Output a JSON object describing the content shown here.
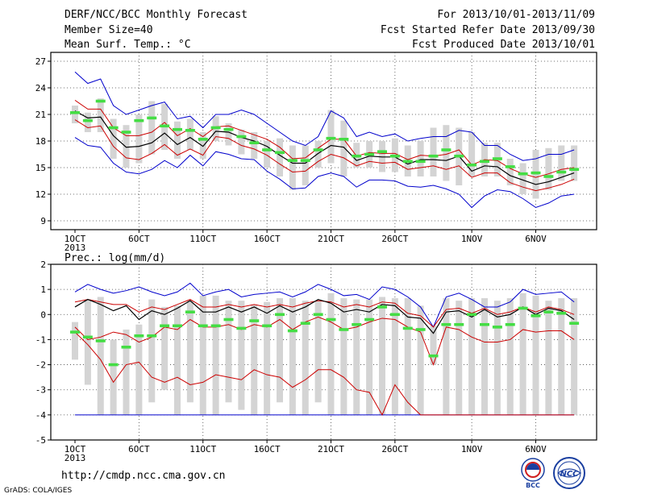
{
  "header": {
    "title": "DERF/NCC/BCC Monthly Forecast",
    "member_size": "Member Size=40",
    "variable": "Mean Surf. Temp.: °C",
    "period": "For 2013/10/01-2013/11/09",
    "started": "Fcst Started Refer Date 2013/09/30",
    "produced": "Fcst Produced Date 2013/10/01"
  },
  "footer": {
    "url": "http://cmdp.ncc.cma.gov.cn",
    "credit": "GrADS: COLA/IGES",
    "logo_left": "BCC",
    "logo_right": "NCC"
  },
  "colors": {
    "ensemble_bar": "#d4d4d4",
    "ensemble_mean": "#000000",
    "spread_inner": "#cc0000",
    "spread_outer": "#0000cc",
    "member_marker": "#44dd44"
  },
  "chart_data": [
    {
      "type": "line",
      "title": "Mean Surf. Temp.: °C",
      "x_tick_labels": [
        "1OCT",
        "6OCT",
        "11OCT",
        "16OCT",
        "21OCT",
        "26OCT",
        "1NOV",
        "6NOV"
      ],
      "x_tick_days": [
        1,
        6,
        11,
        16,
        21,
        26,
        32,
        37
      ],
      "x_sublabel": "2013",
      "ylim": [
        8,
        28
      ],
      "y_ticks": [
        9,
        12,
        15,
        18,
        21,
        24,
        27
      ],
      "grid": true,
      "x": [
        1,
        2,
        3,
        4,
        5,
        6,
        7,
        8,
        9,
        10,
        11,
        12,
        13,
        14,
        15,
        16,
        17,
        18,
        19,
        20,
        21,
        22,
        23,
        24,
        25,
        26,
        27,
        28,
        29,
        30,
        31,
        32,
        33,
        34,
        35,
        36,
        37,
        38,
        39,
        40
      ],
      "series": [
        {
          "role": "ensemble_mean",
          "values": [
            21.4,
            20.6,
            20.7,
            18.6,
            17.3,
            17.4,
            17.8,
            18.9,
            17.6,
            18.4,
            17.4,
            19.1,
            19.0,
            18.4,
            18.0,
            17.4,
            16.4,
            15.5,
            15.5,
            16.6,
            17.5,
            17.3,
            15.8,
            16.3,
            16.2,
            16.2,
            15.4,
            15.9,
            15.9,
            15.8,
            16.3,
            14.6,
            15.2,
            15.1,
            14.1,
            13.6,
            13.1,
            13.4,
            13.9,
            14.4
          ]
        },
        {
          "role": "upper_inner",
          "values": [
            22.6,
            21.6,
            21.6,
            19.5,
            18.6,
            18.6,
            19.0,
            20.1,
            18.6,
            19.4,
            18.5,
            19.6,
            19.7,
            19.2,
            18.7,
            18.2,
            17.3,
            16.0,
            16.1,
            17.2,
            18.2,
            18.2,
            16.3,
            16.7,
            16.6,
            16.6,
            15.9,
            16.4,
            16.3,
            16.5,
            17.0,
            15.3,
            15.9,
            15.8,
            14.9,
            14.3,
            13.9,
            14.3,
            14.8,
            15.0
          ]
        },
        {
          "role": "lower_inner",
          "values": [
            20.4,
            19.5,
            19.7,
            17.4,
            16.1,
            15.9,
            16.6,
            17.6,
            16.4,
            17.1,
            16.4,
            18.5,
            18.3,
            17.5,
            17.1,
            16.4,
            15.4,
            14.5,
            14.6,
            15.7,
            16.5,
            16.1,
            15.2,
            15.7,
            15.5,
            15.6,
            14.8,
            15.0,
            15.2,
            14.8,
            15.2,
            13.9,
            14.4,
            14.4,
            13.3,
            12.8,
            12.4,
            12.7,
            13.1,
            13.7
          ]
        },
        {
          "role": "upper_outer",
          "values": [
            25.8,
            24.5,
            25.0,
            22.0,
            21.0,
            21.5,
            22.0,
            22.4,
            20.5,
            20.8,
            19.5,
            21.0,
            21.0,
            21.5,
            21.0,
            20.0,
            19.0,
            18.0,
            17.5,
            18.5,
            21.4,
            20.6,
            18.5,
            19.0,
            18.5,
            18.8,
            18.0,
            18.3,
            18.5,
            18.5,
            19.2,
            19.0,
            17.5,
            17.5,
            16.5,
            15.8,
            16.0,
            16.5,
            16.5,
            17.0
          ]
        },
        {
          "role": "lower_outer",
          "values": [
            18.4,
            17.5,
            17.3,
            15.5,
            14.5,
            14.3,
            14.8,
            15.8,
            15.0,
            16.4,
            15.2,
            16.8,
            16.5,
            16.0,
            15.9,
            14.6,
            13.7,
            12.6,
            12.7,
            14.0,
            14.4,
            14.0,
            12.8,
            13.6,
            13.6,
            13.5,
            12.9,
            12.8,
            13.0,
            12.6,
            12.0,
            10.5,
            11.8,
            12.5,
            12.3,
            11.5,
            10.5,
            11.0,
            11.8,
            12.0
          ]
        },
        {
          "role": "bar_top",
          "values": [
            22.0,
            21.2,
            22.8,
            20.5,
            19.8,
            21.0,
            22.5,
            22.2,
            20.2,
            20.5,
            19.0,
            20.8,
            20.0,
            19.3,
            19.0,
            18.0,
            18.3,
            17.5,
            17.5,
            18.0,
            21.5,
            20.3,
            17.8,
            18.0,
            18.0,
            18.3,
            17.5,
            18.0,
            19.5,
            19.8,
            19.5,
            19.0,
            17.8,
            17.8,
            16.0,
            15.5,
            17.0,
            17.2,
            17.5,
            17.5
          ]
        },
        {
          "role": "bar_bottom",
          "values": [
            20.0,
            19.0,
            19.0,
            16.0,
            15.0,
            15.5,
            16.5,
            17.0,
            16.0,
            17.0,
            16.0,
            18.0,
            17.5,
            16.5,
            16.0,
            15.0,
            14.0,
            12.5,
            13.0,
            15.0,
            15.5,
            14.0,
            15.0,
            15.0,
            14.5,
            14.5,
            14.0,
            14.0,
            14.0,
            13.5,
            13.0,
            14.0,
            14.0,
            14.0,
            13.0,
            12.0,
            11.5,
            12.5,
            13.5,
            13.5
          ]
        },
        {
          "role": "marker",
          "values": [
            21.2,
            20.3,
            22.5,
            19.5,
            19.0,
            20.3,
            20.6,
            19.7,
            19.3,
            19.2,
            18.2,
            19.5,
            19.3,
            18.5,
            17.8,
            17.0,
            16.7,
            15.8,
            15.8,
            17.0,
            18.3,
            18.2,
            16.3,
            16.5,
            16.8,
            16.3,
            15.7,
            15.7,
            16.3,
            17.0,
            16.3,
            15.3,
            15.7,
            16.0,
            15.1,
            14.3,
            14.4,
            14.0,
            14.5,
            14.8
          ]
        }
      ]
    },
    {
      "type": "line",
      "title": "Prec.: log(mm/d)",
      "x_tick_labels": [
        "1OCT",
        "6OCT",
        "11OCT",
        "16OCT",
        "21OCT",
        "26OCT",
        "1NOV",
        "6NOV"
      ],
      "x_tick_days": [
        1,
        6,
        11,
        16,
        21,
        26,
        32,
        37
      ],
      "x_sublabel": "2013",
      "ylim": [
        -5,
        2
      ],
      "y_ticks": [
        -5,
        -4,
        -3,
        -2,
        -1,
        0,
        1,
        2
      ],
      "grid": true,
      "x": [
        1,
        2,
        3,
        4,
        5,
        6,
        7,
        8,
        9,
        10,
        11,
        12,
        13,
        14,
        15,
        16,
        17,
        18,
        19,
        20,
        21,
        22,
        23,
        24,
        25,
        26,
        27,
        28,
        29,
        30,
        31,
        32,
        33,
        34,
        35,
        36,
        37,
        38,
        39,
        40
      ],
      "series": [
        {
          "role": "ensemble_mean",
          "values": [
            0.3,
            0.6,
            0.4,
            0.15,
            0.35,
            -0.2,
            0.15,
            0.0,
            0.25,
            0.55,
            0.1,
            0.1,
            0.3,
            0.1,
            0.3,
            0.05,
            0.35,
            0.1,
            0.3,
            0.6,
            0.45,
            0.1,
            0.2,
            0.1,
            0.4,
            0.35,
            -0.1,
            -0.15,
            -0.75,
            0.1,
            0.15,
            -0.1,
            0.2,
            -0.1,
            0.0,
            0.3,
            0.0,
            0.25,
            0.15,
            -0.2
          ]
        },
        {
          "role": "upper_inner",
          "values": [
            0.5,
            0.6,
            0.5,
            0.4,
            0.4,
            0.1,
            0.3,
            0.2,
            0.4,
            0.6,
            0.3,
            0.3,
            0.4,
            0.3,
            0.4,
            0.3,
            0.4,
            0.3,
            0.45,
            0.55,
            0.5,
            0.3,
            0.4,
            0.3,
            0.5,
            0.45,
            0.05,
            -0.05,
            -0.5,
            0.2,
            0.25,
            0.05,
            0.25,
            0.0,
            0.1,
            0.3,
            0.1,
            0.3,
            0.2,
            0.0
          ]
        },
        {
          "role": "lower_inner",
          "values": [
            -0.5,
            -1.0,
            -0.9,
            -0.7,
            -0.8,
            -1.1,
            -0.9,
            -0.5,
            -0.6,
            -0.2,
            -0.5,
            -0.5,
            -0.4,
            -0.6,
            -0.4,
            -0.5,
            -0.2,
            -0.6,
            -0.3,
            -0.1,
            -0.3,
            -0.6,
            -0.5,
            -0.3,
            -0.15,
            -0.2,
            -0.5,
            -0.7,
            -2.0,
            -0.5,
            -0.6,
            -0.9,
            -1.1,
            -1.1,
            -1.0,
            -0.6,
            -0.7,
            -0.65,
            -0.65,
            -1.0
          ]
        },
        {
          "role": "upper_outer",
          "values": [
            0.9,
            1.2,
            1.0,
            0.85,
            0.95,
            1.1,
            0.9,
            0.75,
            0.9,
            1.25,
            0.75,
            0.9,
            1.0,
            0.7,
            0.8,
            0.85,
            0.9,
            0.7,
            0.9,
            1.2,
            1.0,
            0.75,
            0.8,
            0.6,
            1.1,
            1.0,
            0.7,
            0.3,
            -0.5,
            0.7,
            0.85,
            0.6,
            0.3,
            0.3,
            0.5,
            1.0,
            0.8,
            0.85,
            0.9,
            0.5
          ]
        },
        {
          "role": "lower_outer",
          "values": [
            -0.7,
            -1.2,
            -1.8,
            -2.7,
            -2.0,
            -1.9,
            -2.5,
            -2.7,
            -2.5,
            -2.8,
            -2.7,
            -2.4,
            -2.5,
            -2.6,
            -2.2,
            -2.4,
            -2.5,
            -2.9,
            -2.6,
            -2.2,
            -2.2,
            -2.5,
            -3.0,
            -3.1,
            -4.0,
            -2.8,
            -3.5,
            -4.0,
            -4.0,
            -4.0,
            -4.0,
            -4.0,
            -4.0,
            -4.0,
            -4.0,
            -4.0,
            -4.0,
            -4.0,
            -4.0,
            -4.0
          ]
        },
        {
          "role": "bar_top",
          "values": [
            -0.3,
            0.6,
            0.7,
            -1.0,
            -0.6,
            -0.4,
            0.6,
            0.3,
            0.35,
            0.55,
            0.75,
            0.75,
            0.55,
            0.55,
            0.4,
            0.5,
            0.65,
            0.65,
            0.55,
            0.55,
            0.85,
            0.65,
            0.6,
            0.6,
            0.7,
            0.65,
            0.65,
            0.35,
            -0.45,
            0.65,
            0.55,
            0.65,
            0.65,
            0.55,
            0.65,
            0.85,
            0.75,
            0.55,
            0.65,
            0.65
          ]
        },
        {
          "role": "bar_bottom",
          "values": [
            -1.8,
            -2.8,
            -4.0,
            -4.0,
            -4.0,
            -4.0,
            -3.5,
            -3.0,
            -4.0,
            -3.5,
            -4.0,
            -4.0,
            -3.5,
            -3.8,
            -4.0,
            -4.0,
            -3.5,
            -4.0,
            -4.0,
            -3.5,
            -4.0,
            -4.0,
            -4.0,
            -4.0,
            -4.0,
            -4.0,
            -4.0,
            -4.0,
            -2.0,
            -4.0,
            -4.0,
            -4.0,
            -4.0,
            -4.0,
            -4.0,
            -4.0,
            -4.0,
            -4.0,
            -4.0,
            -4.0
          ]
        },
        {
          "role": "marker",
          "values": [
            -0.7,
            -0.9,
            -1.05,
            -2.0,
            -1.3,
            -0.85,
            -0.85,
            -0.45,
            -0.45,
            0.1,
            -0.45,
            -0.45,
            -0.2,
            -0.55,
            -0.25,
            -0.45,
            0.0,
            -0.65,
            -0.35,
            0.0,
            -0.2,
            -0.6,
            -0.4,
            -0.2,
            0.3,
            0.0,
            -0.55,
            -0.6,
            -1.65,
            -0.4,
            -0.4,
            0.0,
            -0.4,
            -0.5,
            -0.4,
            0.25,
            -0.05,
            0.1,
            0.05,
            -0.35
          ]
        },
        {
          "role": "floor",
          "values": [
            -4.0,
            -4.0,
            -4.0,
            -4.0,
            -4.0,
            -4.0,
            -4.0,
            -4.0,
            -4.0,
            -4.0,
            -4.0,
            -4.0,
            -4.0,
            -4.0,
            -4.0,
            -4.0,
            -4.0,
            -4.0,
            -4.0,
            -4.0,
            -4.0,
            -4.0,
            -4.0,
            -4.0,
            -4.0,
            -4.0,
            -4.0,
            -4.0,
            -4.0,
            -4.0,
            -4.0,
            -4.0,
            -4.0,
            -4.0,
            -4.0,
            -4.0,
            -4.0,
            -4.0,
            -4.0,
            -4.0
          ]
        }
      ]
    }
  ]
}
